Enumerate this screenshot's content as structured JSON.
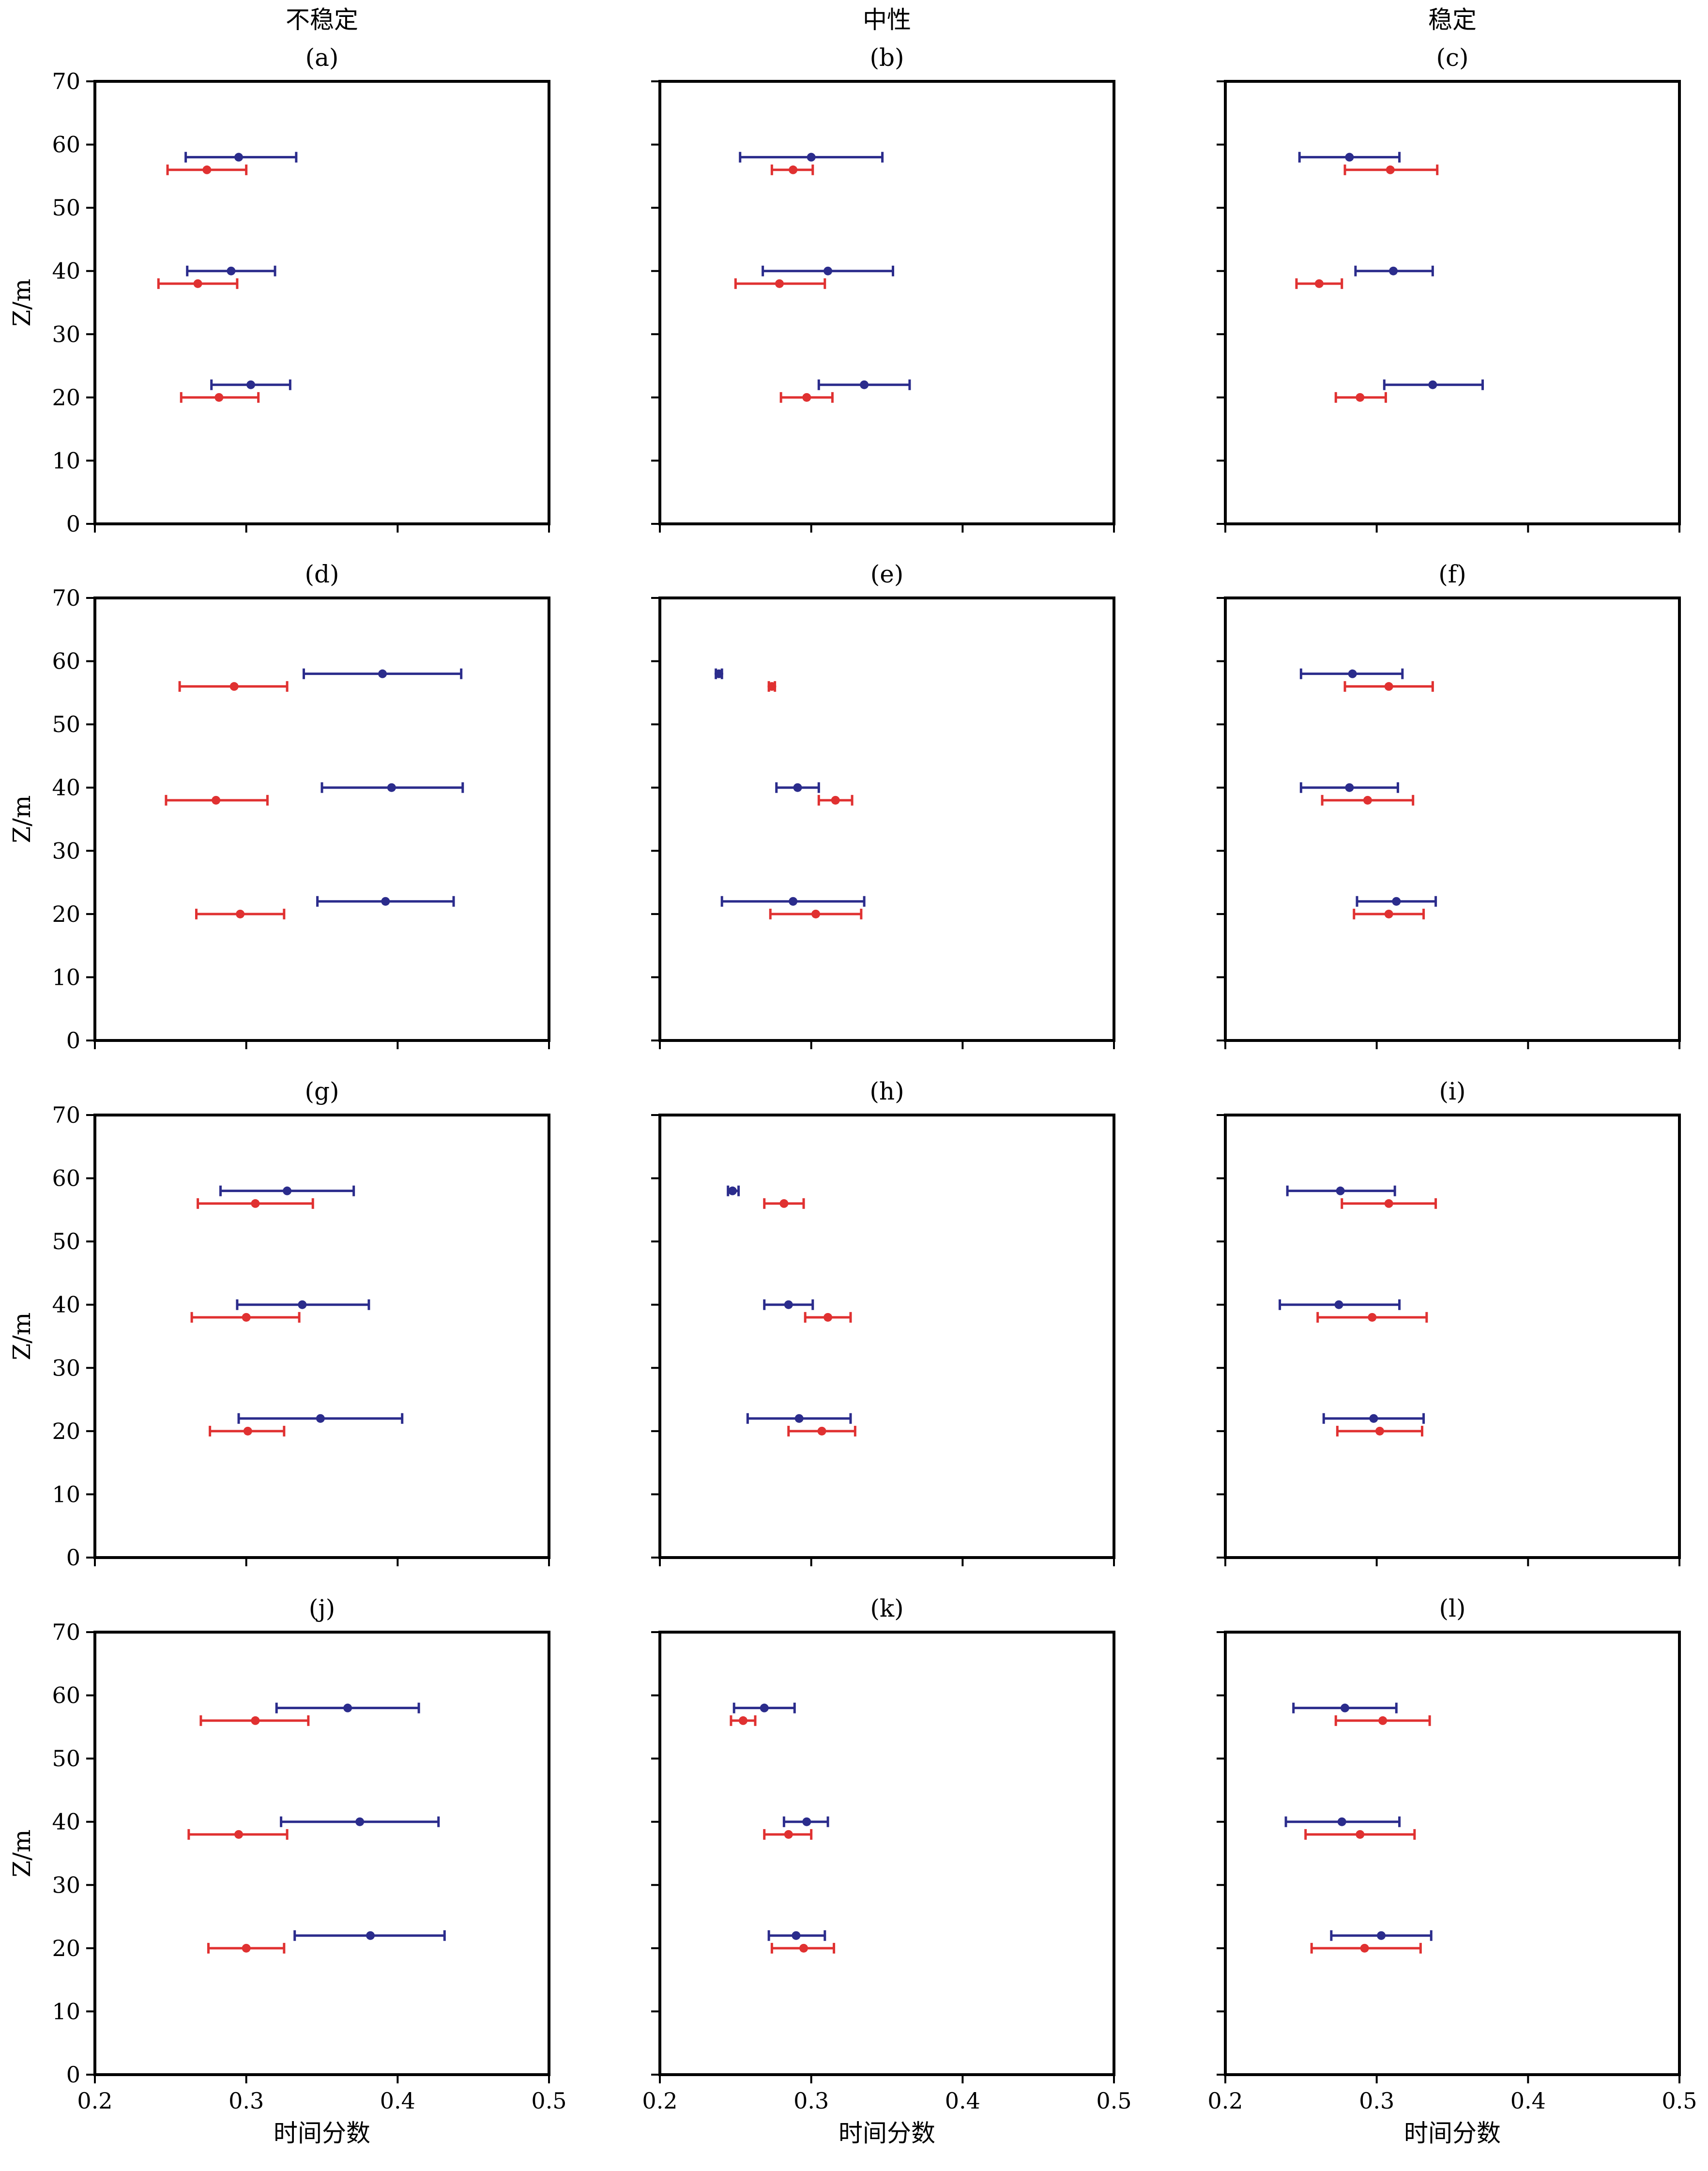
{
  "figure": {
    "column_titles": [
      "不稳定",
      "中性",
      "稳定"
    ],
    "xlabel": "时间分数",
    "ylabel": "Z/m",
    "xlim": [
      0.2,
      0.5
    ],
    "ylim": [
      0,
      70
    ],
    "xticks": [
      "0.2",
      "0.3",
      "0.4",
      "0.5"
    ],
    "yticks": [
      "0",
      "10",
      "20",
      "30",
      "40",
      "50",
      "60",
      "70"
    ],
    "colors": {
      "blue": "#2B2C8C",
      "red": "#E03131"
    }
  },
  "chart_data": [
    {
      "type": "errorbar",
      "label": "(a)",
      "series": [
        {
          "color": "blue",
          "points": [
            {
              "x": 0.295,
              "y": 58,
              "xmin": 0.26,
              "xmax": 0.333
            },
            {
              "x": 0.29,
              "y": 40,
              "xmin": 0.261,
              "xmax": 0.319
            },
            {
              "x": 0.303,
              "y": 22,
              "xmin": 0.277,
              "xmax": 0.329
            }
          ]
        },
        {
          "color": "red",
          "points": [
            {
              "x": 0.274,
              "y": 56,
              "xmin": 0.248,
              "xmax": 0.3
            },
            {
              "x": 0.268,
              "y": 38,
              "xmin": 0.242,
              "xmax": 0.294
            },
            {
              "x": 0.282,
              "y": 20,
              "xmin": 0.257,
              "xmax": 0.308
            }
          ]
        }
      ]
    },
    {
      "type": "errorbar",
      "label": "(b)",
      "series": [
        {
          "color": "blue",
          "points": [
            {
              "x": 0.3,
              "y": 58,
              "xmin": 0.253,
              "xmax": 0.347
            },
            {
              "x": 0.311,
              "y": 40,
              "xmin": 0.268,
              "xmax": 0.354
            },
            {
              "x": 0.335,
              "y": 22,
              "xmin": 0.305,
              "xmax": 0.365
            }
          ]
        },
        {
          "color": "red",
          "points": [
            {
              "x": 0.288,
              "y": 56,
              "xmin": 0.274,
              "xmax": 0.301
            },
            {
              "x": 0.279,
              "y": 38,
              "xmin": 0.25,
              "xmax": 0.309
            },
            {
              "x": 0.297,
              "y": 20,
              "xmin": 0.28,
              "xmax": 0.314
            }
          ]
        }
      ]
    },
    {
      "type": "errorbar",
      "label": "(c)",
      "series": [
        {
          "color": "blue",
          "points": [
            {
              "x": 0.282,
              "y": 58,
              "xmin": 0.249,
              "xmax": 0.315
            },
            {
              "x": 0.311,
              "y": 40,
              "xmin": 0.286,
              "xmax": 0.337
            },
            {
              "x": 0.337,
              "y": 22,
              "xmin": 0.305,
              "xmax": 0.37
            }
          ]
        },
        {
          "color": "red",
          "points": [
            {
              "x": 0.309,
              "y": 56,
              "xmin": 0.279,
              "xmax": 0.34
            },
            {
              "x": 0.262,
              "y": 38,
              "xmin": 0.247,
              "xmax": 0.277
            },
            {
              "x": 0.289,
              "y": 20,
              "xmin": 0.273,
              "xmax": 0.306
            }
          ]
        }
      ]
    },
    {
      "type": "errorbar",
      "label": "(d)",
      "series": [
        {
          "color": "blue",
          "points": [
            {
              "x": 0.39,
              "y": 58,
              "xmin": 0.338,
              "xmax": 0.442
            },
            {
              "x": 0.396,
              "y": 40,
              "xmin": 0.35,
              "xmax": 0.443
            },
            {
              "x": 0.392,
              "y": 22,
              "xmin": 0.347,
              "xmax": 0.437
            }
          ]
        },
        {
          "color": "red",
          "points": [
            {
              "x": 0.292,
              "y": 56,
              "xmin": 0.256,
              "xmax": 0.327
            },
            {
              "x": 0.28,
              "y": 38,
              "xmin": 0.247,
              "xmax": 0.314
            },
            {
              "x": 0.296,
              "y": 20,
              "xmin": 0.267,
              "xmax": 0.325
            }
          ]
        }
      ]
    },
    {
      "type": "errorbar",
      "label": "(e)",
      "series": [
        {
          "color": "blue",
          "points": [
            {
              "x": 0.239,
              "y": 58,
              "xmin": 0.237,
              "xmax": 0.241
            },
            {
              "x": 0.291,
              "y": 40,
              "xmin": 0.277,
              "xmax": 0.305
            },
            {
              "x": 0.288,
              "y": 22,
              "xmin": 0.241,
              "xmax": 0.335
            }
          ]
        },
        {
          "color": "red",
          "points": [
            {
              "x": 0.274,
              "y": 56,
              "xmin": 0.272,
              "xmax": 0.276
            },
            {
              "x": 0.316,
              "y": 38,
              "xmin": 0.305,
              "xmax": 0.327
            },
            {
              "x": 0.303,
              "y": 20,
              "xmin": 0.273,
              "xmax": 0.333
            }
          ]
        }
      ]
    },
    {
      "type": "errorbar",
      "label": "(f)",
      "series": [
        {
          "color": "blue",
          "points": [
            {
              "x": 0.284,
              "y": 58,
              "xmin": 0.25,
              "xmax": 0.317
            },
            {
              "x": 0.282,
              "y": 40,
              "xmin": 0.25,
              "xmax": 0.314
            },
            {
              "x": 0.313,
              "y": 22,
              "xmin": 0.287,
              "xmax": 0.339
            }
          ]
        },
        {
          "color": "red",
          "points": [
            {
              "x": 0.308,
              "y": 56,
              "xmin": 0.279,
              "xmax": 0.337
            },
            {
              "x": 0.294,
              "y": 38,
              "xmin": 0.264,
              "xmax": 0.324
            },
            {
              "x": 0.308,
              "y": 20,
              "xmin": 0.285,
              "xmax": 0.331
            }
          ]
        }
      ]
    },
    {
      "type": "errorbar",
      "label": "(g)",
      "series": [
        {
          "color": "blue",
          "points": [
            {
              "x": 0.327,
              "y": 58,
              "xmin": 0.283,
              "xmax": 0.371
            },
            {
              "x": 0.337,
              "y": 40,
              "xmin": 0.294,
              "xmax": 0.381
            },
            {
              "x": 0.349,
              "y": 22,
              "xmin": 0.295,
              "xmax": 0.403
            }
          ]
        },
        {
          "color": "red",
          "points": [
            {
              "x": 0.306,
              "y": 56,
              "xmin": 0.268,
              "xmax": 0.344
            },
            {
              "x": 0.3,
              "y": 38,
              "xmin": 0.264,
              "xmax": 0.335
            },
            {
              "x": 0.301,
              "y": 20,
              "xmin": 0.276,
              "xmax": 0.325
            }
          ]
        }
      ]
    },
    {
      "type": "errorbar",
      "label": "(h)",
      "series": [
        {
          "color": "blue",
          "points": [
            {
              "x": 0.248,
              "y": 58,
              "xmin": 0.245,
              "xmax": 0.252
            },
            {
              "x": 0.285,
              "y": 40,
              "xmin": 0.269,
              "xmax": 0.301
            },
            {
              "x": 0.292,
              "y": 22,
              "xmin": 0.258,
              "xmax": 0.326
            }
          ]
        },
        {
          "color": "red",
          "points": [
            {
              "x": 0.282,
              "y": 56,
              "xmin": 0.269,
              "xmax": 0.295
            },
            {
              "x": 0.311,
              "y": 38,
              "xmin": 0.296,
              "xmax": 0.326
            },
            {
              "x": 0.307,
              "y": 20,
              "xmin": 0.285,
              "xmax": 0.329
            }
          ]
        }
      ]
    },
    {
      "type": "errorbar",
      "label": "(i)",
      "series": [
        {
          "color": "blue",
          "points": [
            {
              "x": 0.276,
              "y": 58,
              "xmin": 0.241,
              "xmax": 0.312
            },
            {
              "x": 0.275,
              "y": 40,
              "xmin": 0.236,
              "xmax": 0.315
            },
            {
              "x": 0.298,
              "y": 22,
              "xmin": 0.265,
              "xmax": 0.331
            }
          ]
        },
        {
          "color": "red",
          "points": [
            {
              "x": 0.308,
              "y": 56,
              "xmin": 0.277,
              "xmax": 0.339
            },
            {
              "x": 0.297,
              "y": 38,
              "xmin": 0.261,
              "xmax": 0.333
            },
            {
              "x": 0.302,
              "y": 20,
              "xmin": 0.274,
              "xmax": 0.33
            }
          ]
        }
      ]
    },
    {
      "type": "errorbar",
      "label": "(j)",
      "series": [
        {
          "color": "blue",
          "points": [
            {
              "x": 0.367,
              "y": 58,
              "xmin": 0.32,
              "xmax": 0.414
            },
            {
              "x": 0.375,
              "y": 40,
              "xmin": 0.323,
              "xmax": 0.427
            },
            {
              "x": 0.382,
              "y": 22,
              "xmin": 0.332,
              "xmax": 0.431
            }
          ]
        },
        {
          "color": "red",
          "points": [
            {
              "x": 0.306,
              "y": 56,
              "xmin": 0.27,
              "xmax": 0.341
            },
            {
              "x": 0.295,
              "y": 38,
              "xmin": 0.262,
              "xmax": 0.327
            },
            {
              "x": 0.3,
              "y": 20,
              "xmin": 0.275,
              "xmax": 0.325
            }
          ]
        }
      ]
    },
    {
      "type": "errorbar",
      "label": "(k)",
      "series": [
        {
          "color": "blue",
          "points": [
            {
              "x": 0.269,
              "y": 58,
              "xmin": 0.249,
              "xmax": 0.289
            },
            {
              "x": 0.297,
              "y": 40,
              "xmin": 0.282,
              "xmax": 0.311
            },
            {
              "x": 0.29,
              "y": 22,
              "xmin": 0.272,
              "xmax": 0.309
            }
          ]
        },
        {
          "color": "red",
          "points": [
            {
              "x": 0.255,
              "y": 56,
              "xmin": 0.247,
              "xmax": 0.263
            },
            {
              "x": 0.285,
              "y": 38,
              "xmin": 0.269,
              "xmax": 0.3
            },
            {
              "x": 0.295,
              "y": 20,
              "xmin": 0.274,
              "xmax": 0.315
            }
          ]
        }
      ]
    },
    {
      "type": "errorbar",
      "label": "(l)",
      "series": [
        {
          "color": "blue",
          "points": [
            {
              "x": 0.279,
              "y": 58,
              "xmin": 0.245,
              "xmax": 0.313
            },
            {
              "x": 0.277,
              "y": 40,
              "xmin": 0.24,
              "xmax": 0.315
            },
            {
              "x": 0.303,
              "y": 22,
              "xmin": 0.27,
              "xmax": 0.336
            }
          ]
        },
        {
          "color": "red",
          "points": [
            {
              "x": 0.304,
              "y": 56,
              "xmin": 0.273,
              "xmax": 0.335
            },
            {
              "x": 0.289,
              "y": 38,
              "xmin": 0.253,
              "xmax": 0.325
            },
            {
              "x": 0.292,
              "y": 20,
              "xmin": 0.257,
              "xmax": 0.329
            }
          ]
        }
      ]
    }
  ]
}
